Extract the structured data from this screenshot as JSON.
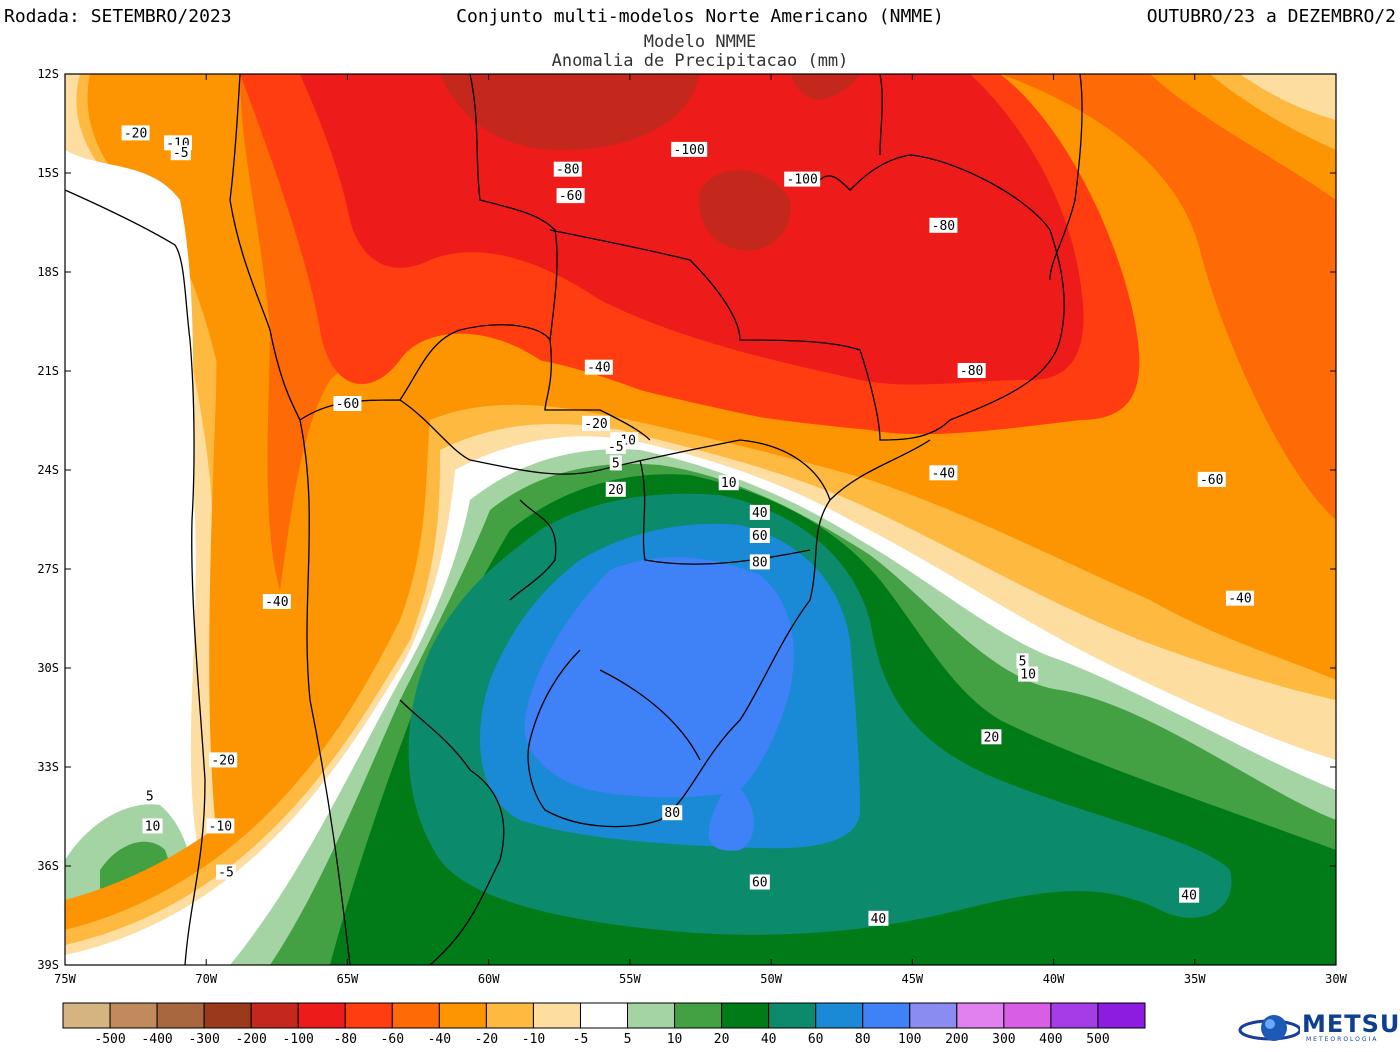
{
  "header": {
    "left": "Rodada: SETEMBRO/2023",
    "center": "Conjunto multi-modelos Norte Americano (NMME)",
    "right": "OUTUBRO/23 a DEZEMBRO/2",
    "subtitle1": "Modelo NMME",
    "subtitle2": "Anomalia de Precipitacao (mm)"
  },
  "axes": {
    "lat_labels": [
      "12S",
      "15S",
      "18S",
      "21S",
      "24S",
      "27S",
      "30S",
      "33S",
      "36S",
      "39S"
    ],
    "lon_labels": [
      "75W",
      "70W",
      "65W",
      "60W",
      "55W",
      "50W",
      "45W",
      "40W",
      "35W",
      "30W"
    ]
  },
  "colorbar": {
    "colors": [
      "#d6b482",
      "#c08a5c",
      "#a8673e",
      "#9a3a1a",
      "#c4281c",
      "#ee1b1b",
      "#ff3d10",
      "#fd6a06",
      "#fd9502",
      "#feb940",
      "#fedda0",
      "#ffffff",
      "#a4d4a4",
      "#43a043",
      "#017a18",
      "#0c8a6c",
      "#1a8ad6",
      "#3f82f7",
      "#8a8cf2",
      "#df82f0",
      "#d95ee6",
      "#a43de6",
      "#8c1ce0"
    ],
    "labels": [
      "-500",
      "-400",
      "-300",
      "-200",
      "-100",
      "-80",
      "-60",
      "-40",
      "-20",
      "-10",
      "-5",
      "5",
      "10",
      "20",
      "40",
      "60",
      "80",
      "100",
      "200",
      "300",
      "400",
      "500"
    ]
  },
  "contour_labels": [
    {
      "text": "-20",
      "lon": -72.5,
      "lat": -13.8
    },
    {
      "text": "-10",
      "lon": -71.0,
      "lat": -14.1
    },
    {
      "text": "-5",
      "lon": -70.9,
      "lat": -14.4
    },
    {
      "text": "-80",
      "lon": -57.2,
      "lat": -14.9
    },
    {
      "text": "-100",
      "lon": -52.9,
      "lat": -14.3
    },
    {
      "text": "-100",
      "lon": -48.9,
      "lat": -15.2
    },
    {
      "text": "-60",
      "lon": -57.1,
      "lat": -15.7
    },
    {
      "text": "-80",
      "lon": -43.9,
      "lat": -16.6
    },
    {
      "text": "-40",
      "lon": -56.1,
      "lat": -20.9
    },
    {
      "text": "-80",
      "lon": -42.9,
      "lat": -21.0
    },
    {
      "text": "-60",
      "lon": -65.0,
      "lat": -22.0
    },
    {
      "text": "-20",
      "lon": -56.2,
      "lat": -22.6
    },
    {
      "text": "-10",
      "lon": -55.2,
      "lat": -23.1
    },
    {
      "text": "-5",
      "lon": -55.5,
      "lat": -23.3
    },
    {
      "text": "5",
      "lon": -55.5,
      "lat": -23.8
    },
    {
      "text": "20",
      "lon": -55.5,
      "lat": -24.6
    },
    {
      "text": "10",
      "lon": -51.5,
      "lat": -24.4
    },
    {
      "text": "-40",
      "lon": -43.9,
      "lat": -24.1
    },
    {
      "text": "-60",
      "lon": -34.4,
      "lat": -24.3
    },
    {
      "text": "40",
      "lon": -50.4,
      "lat": -25.3
    },
    {
      "text": "60",
      "lon": -50.4,
      "lat": -26.0
    },
    {
      "text": "80",
      "lon": -50.4,
      "lat": -26.8
    },
    {
      "text": "-40",
      "lon": -67.5,
      "lat": -28.0
    },
    {
      "text": "-40",
      "lon": -33.4,
      "lat": -27.9
    },
    {
      "text": "5",
      "lon": -41.1,
      "lat": -29.8
    },
    {
      "text": "10",
      "lon": -40.9,
      "lat": -30.2
    },
    {
      "text": "20",
      "lon": -42.2,
      "lat": -32.1
    },
    {
      "text": "-20",
      "lon": -69.4,
      "lat": -32.8
    },
    {
      "text": "5",
      "lon": -72.0,
      "lat": -33.9
    },
    {
      "text": "10",
      "lon": -71.9,
      "lat": -34.8
    },
    {
      "text": "-10",
      "lon": -69.5,
      "lat": -34.8
    },
    {
      "text": "80",
      "lon": -53.5,
      "lat": -34.4
    },
    {
      "text": "-5",
      "lon": -69.3,
      "lat": -36.2
    },
    {
      "text": "60",
      "lon": -50.4,
      "lat": -36.5
    },
    {
      "text": "40",
      "lon": -46.2,
      "lat": -37.6
    },
    {
      "text": "40",
      "lon": -35.2,
      "lat": -36.9
    }
  ],
  "logo": {
    "name": "METSUL",
    "tagline": "METEOROLOGIA"
  }
}
